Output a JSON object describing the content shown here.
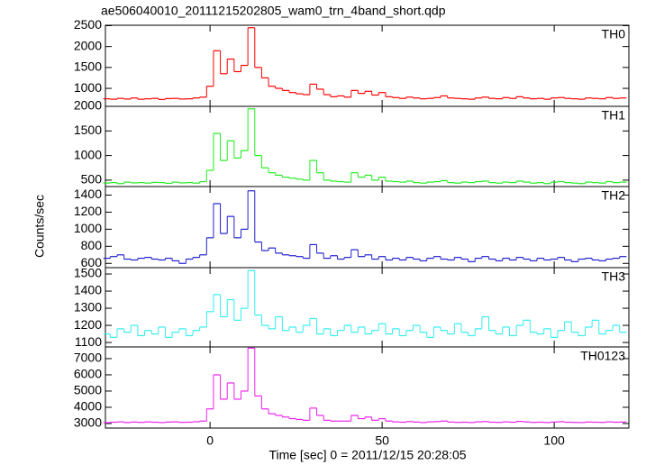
{
  "chart_data": [
    {
      "type": "line",
      "title": "ae506040010_20111215202805_wam0_trn_4band_short.qdp",
      "y_label": "Counts/sec",
      "label": "TH0",
      "color": "#ff0000",
      "xlim": [
        -30.4,
        121.7
      ],
      "ylim": [
        570,
        2510
      ],
      "yticks": [
        1000,
        1500,
        2000,
        2500
      ],
      "x": [
        -30,
        -28,
        -26,
        -24,
        -22,
        -20,
        -18,
        -16,
        -14,
        -12,
        -10,
        -8,
        -6,
        -4,
        -2,
        0,
        2,
        4,
        6,
        8,
        10,
        12,
        14,
        16,
        18,
        20,
        22,
        24,
        26,
        28,
        30,
        32,
        34,
        36,
        38,
        40,
        42,
        44,
        46,
        48,
        50,
        52,
        54,
        56,
        58,
        60,
        62,
        64,
        66,
        68,
        70,
        72,
        74,
        76,
        78,
        80,
        82,
        84,
        86,
        88,
        90,
        92,
        94,
        96,
        98,
        100,
        102,
        104,
        106,
        108,
        110,
        112,
        114,
        116,
        118,
        120
      ],
      "values": [
        750,
        740,
        760,
        745,
        770,
        740,
        750,
        760,
        735,
        755,
        760,
        745,
        750,
        770,
        790,
        1050,
        1900,
        1350,
        1700,
        1400,
        1550,
        2450,
        1500,
        1250,
        1050,
        1000,
        950,
        900,
        870,
        850,
        1100,
        980,
        850,
        800,
        820,
        790,
        950,
        880,
        930,
        840,
        900,
        800,
        780,
        760,
        790,
        770,
        750,
        760,
        780,
        820,
        770,
        760,
        750,
        740,
        770,
        790,
        760,
        750,
        780,
        760,
        800,
        770,
        750,
        760,
        740,
        770,
        780,
        760,
        750,
        740,
        770,
        760,
        750,
        780,
        760,
        770
      ]
    },
    {
      "type": "line",
      "label": "TH1",
      "color": "#22ee22",
      "xlim": [
        -30.4,
        121.7
      ],
      "ylim": [
        370,
        2000
      ],
      "yticks": [
        500,
        1000,
        1500,
        2000
      ],
      "x": [
        -30,
        -28,
        -26,
        -24,
        -22,
        -20,
        -18,
        -16,
        -14,
        -12,
        -10,
        -8,
        -6,
        -4,
        -2,
        0,
        2,
        4,
        6,
        8,
        10,
        12,
        14,
        16,
        18,
        20,
        22,
        24,
        26,
        28,
        30,
        32,
        34,
        36,
        38,
        40,
        42,
        44,
        46,
        48,
        50,
        52,
        54,
        56,
        58,
        60,
        62,
        64,
        66,
        68,
        70,
        72,
        74,
        76,
        78,
        80,
        82,
        84,
        86,
        88,
        90,
        92,
        94,
        96,
        98,
        100,
        102,
        104,
        106,
        108,
        110,
        112,
        114,
        116,
        118,
        120
      ],
      "values": [
        440,
        450,
        430,
        460,
        445,
        450,
        440,
        455,
        450,
        435,
        460,
        445,
        450,
        440,
        470,
        700,
        1450,
        900,
        1300,
        950,
        1100,
        1950,
        1000,
        750,
        650,
        600,
        560,
        540,
        520,
        500,
        900,
        650,
        500,
        480,
        470,
        460,
        650,
        560,
        600,
        500,
        560,
        480,
        470,
        460,
        480,
        450,
        440,
        460,
        470,
        490,
        450,
        440,
        460,
        450,
        470,
        480,
        450,
        440,
        460,
        450,
        480,
        460,
        440,
        450,
        430,
        460,
        470,
        450,
        440,
        430,
        460,
        450,
        440,
        470,
        450,
        460
      ]
    },
    {
      "type": "line",
      "label": "TH2",
      "color": "#2020d0",
      "xlim": [
        -30.4,
        121.7
      ],
      "ylim": [
        550,
        1500
      ],
      "yticks": [
        600,
        800,
        1000,
        1200,
        1400
      ],
      "x": [
        -30,
        -28,
        -26,
        -24,
        -22,
        -20,
        -18,
        -16,
        -14,
        -12,
        -10,
        -8,
        -6,
        -4,
        -2,
        0,
        2,
        4,
        6,
        8,
        10,
        12,
        14,
        16,
        18,
        20,
        22,
        24,
        26,
        28,
        30,
        32,
        34,
        36,
        38,
        40,
        42,
        44,
        46,
        48,
        50,
        52,
        54,
        56,
        58,
        60,
        62,
        64,
        66,
        68,
        70,
        72,
        74,
        76,
        78,
        80,
        82,
        84,
        86,
        88,
        90,
        92,
        94,
        96,
        98,
        100,
        102,
        104,
        106,
        108,
        110,
        112,
        114,
        116,
        118,
        120
      ],
      "values": [
        660,
        680,
        700,
        650,
        640,
        660,
        670,
        650,
        640,
        660,
        630,
        600,
        650,
        670,
        700,
        900,
        1300,
        950,
        1150,
        900,
        1000,
        1450,
        850,
        750,
        780,
        720,
        700,
        690,
        680,
        660,
        820,
        720,
        660,
        690,
        650,
        670,
        760,
        680,
        700,
        650,
        680,
        640,
        660,
        640,
        670,
        650,
        630,
        660,
        680,
        650,
        640,
        670,
        650,
        620,
        660,
        680,
        650,
        630,
        660,
        640,
        670,
        650,
        630,
        660,
        640,
        650,
        670,
        640,
        620,
        650,
        660,
        640,
        630,
        650,
        660,
        680
      ]
    },
    {
      "type": "line",
      "label": "TH3",
      "color": "#33eeee",
      "xlim": [
        -30.4,
        121.7
      ],
      "ylim": [
        1074,
        1537
      ],
      "yticks": [
        1100,
        1200,
        1300,
        1400,
        1500
      ],
      "x": [
        -30,
        -28,
        -26,
        -24,
        -22,
        -20,
        -18,
        -16,
        -14,
        -12,
        -10,
        -8,
        -6,
        -4,
        -2,
        0,
        2,
        4,
        6,
        8,
        10,
        12,
        14,
        16,
        18,
        20,
        22,
        24,
        26,
        28,
        30,
        32,
        34,
        36,
        38,
        40,
        42,
        44,
        46,
        48,
        50,
        52,
        54,
        56,
        58,
        60,
        62,
        64,
        66,
        68,
        70,
        72,
        74,
        76,
        78,
        80,
        82,
        84,
        86,
        88,
        90,
        92,
        94,
        96,
        98,
        100,
        102,
        104,
        106,
        108,
        110,
        112,
        114,
        116,
        118,
        120
      ],
      "values": [
        1150,
        1130,
        1180,
        1160,
        1200,
        1140,
        1170,
        1150,
        1190,
        1130,
        1160,
        1180,
        1140,
        1170,
        1190,
        1280,
        1380,
        1250,
        1350,
        1230,
        1300,
        1520,
        1260,
        1200,
        1180,
        1250,
        1170,
        1190,
        1160,
        1200,
        1240,
        1150,
        1180,
        1140,
        1170,
        1200,
        1160,
        1190,
        1150,
        1170,
        1210,
        1150,
        1180,
        1140,
        1170,
        1200,
        1160,
        1130,
        1190,
        1170,
        1150,
        1210,
        1160,
        1140,
        1180,
        1250,
        1170,
        1150,
        1190,
        1140,
        1200,
        1230,
        1160,
        1150,
        1180,
        1130,
        1170,
        1220,
        1160,
        1140,
        1190,
        1230,
        1150,
        1170,
        1200,
        1160
      ]
    },
    {
      "type": "line",
      "label": "TH0123",
      "color": "#ee22ee",
      "x_label": "Time [sec] 0 = 2011/12/15 20:28:05",
      "xlim": [
        -30.4,
        121.7
      ],
      "xticks": [
        0,
        50,
        100
      ],
      "ylim": [
        2720,
        7720
      ],
      "yticks": [
        3000,
        4000,
        5000,
        6000,
        7000
      ],
      "x": [
        -30,
        -28,
        -26,
        -24,
        -22,
        -20,
        -18,
        -16,
        -14,
        -12,
        -10,
        -8,
        -6,
        -4,
        -2,
        0,
        2,
        4,
        6,
        8,
        10,
        12,
        14,
        16,
        18,
        20,
        22,
        24,
        26,
        28,
        30,
        32,
        34,
        36,
        38,
        40,
        42,
        44,
        46,
        48,
        50,
        52,
        54,
        56,
        58,
        60,
        62,
        64,
        66,
        68,
        70,
        72,
        74,
        76,
        78,
        80,
        82,
        84,
        86,
        88,
        90,
        92,
        94,
        96,
        98,
        100,
        102,
        104,
        106,
        108,
        110,
        112,
        114,
        116,
        118,
        120
      ],
      "values": [
        3050,
        3080,
        3100,
        3060,
        3090,
        3070,
        3100,
        3080,
        3060,
        3090,
        3100,
        3070,
        3080,
        3110,
        3150,
        3900,
        6000,
        4500,
        5500,
        4500,
        5000,
        7650,
        4700,
        3900,
        3600,
        3500,
        3400,
        3300,
        3250,
        3200,
        3950,
        3500,
        3200,
        3150,
        3150,
        3150,
        3500,
        3300,
        3400,
        3200,
        3300,
        3150,
        3100,
        3080,
        3120,
        3090,
        3060,
        3100,
        3120,
        3150,
        3090,
        3070,
        3080,
        3060,
        3100,
        3120,
        3080,
        3070,
        3100,
        3080,
        3130,
        3100,
        3070,
        3080,
        3060,
        3090,
        3110,
        3080,
        3070,
        3060,
        3090,
        3080,
        3070,
        3100,
        3080,
        3090
      ]
    }
  ]
}
